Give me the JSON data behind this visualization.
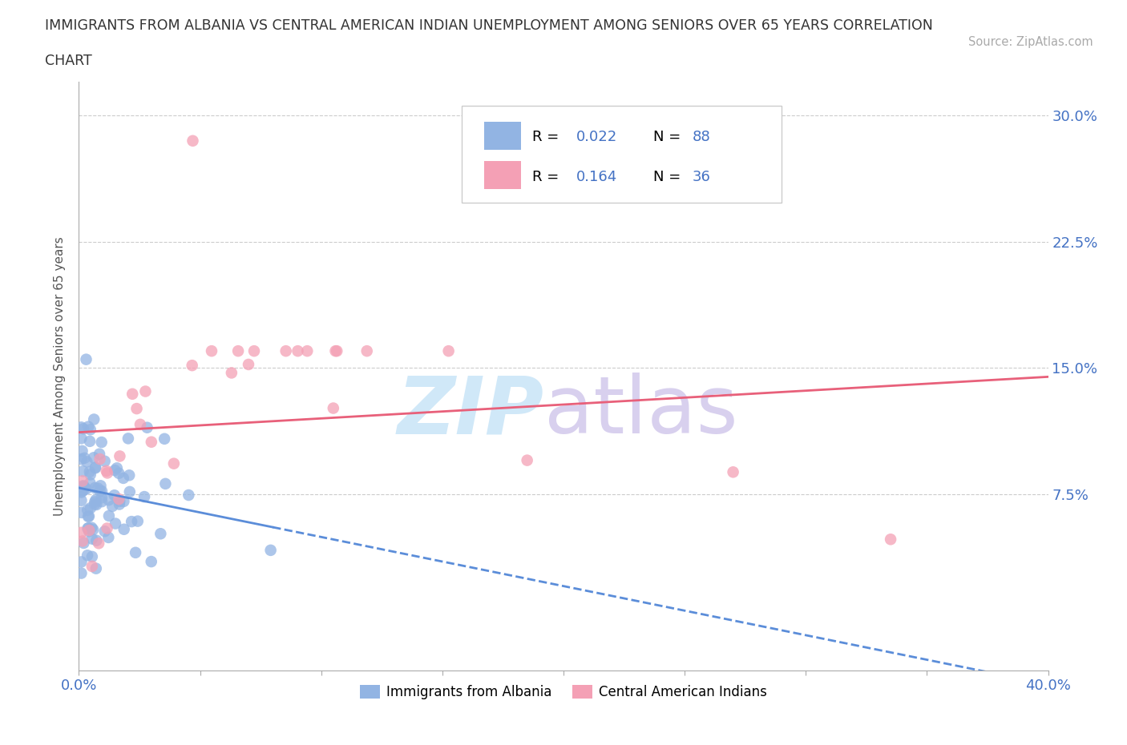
{
  "title_line1": "IMMIGRANTS FROM ALBANIA VS CENTRAL AMERICAN INDIAN UNEMPLOYMENT AMONG SENIORS OVER 65 YEARS CORRELATION",
  "title_line2": "CHART",
  "source": "Source: ZipAtlas.com",
  "ylabel": "Unemployment Among Seniors over 65 years",
  "xlim": [
    0.0,
    0.4
  ],
  "ylim": [
    -0.03,
    0.32
  ],
  "ytick_positions": [
    0.075,
    0.15,
    0.225,
    0.3
  ],
  "ytick_labels": [
    "7.5%",
    "15.0%",
    "22.5%",
    "30.0%"
  ],
  "legend_r1": "R = 0.022",
  "legend_n1": "N = 88",
  "legend_r2": "R = 0.164",
  "legend_n2": "N = 36",
  "series1_label": "Immigrants from Albania",
  "series2_label": "Central American Indians",
  "series1_color": "#92b4e3",
  "series2_color": "#f4a0b5",
  "series1_line_color": "#5b8dd9",
  "series2_line_color": "#e8607a",
  "watermark_zip_color": "#d0e8f8",
  "watermark_atlas_color": "#d8d0ee",
  "background_color": "#ffffff",
  "tick_color": "#4472c4",
  "grid_color": "#cccccc",
  "R1": 0.022,
  "N1": 88,
  "R2": 0.164,
  "N2": 36
}
